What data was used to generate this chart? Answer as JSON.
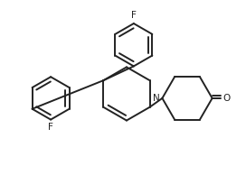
{
  "bg_color": "#ffffff",
  "line_color": "#222222",
  "line_width": 1.4,
  "figsize": [
    2.72,
    2.04
  ],
  "dpi": 100,
  "xlim": [
    0,
    272
  ],
  "ylim": [
    0,
    204
  ]
}
